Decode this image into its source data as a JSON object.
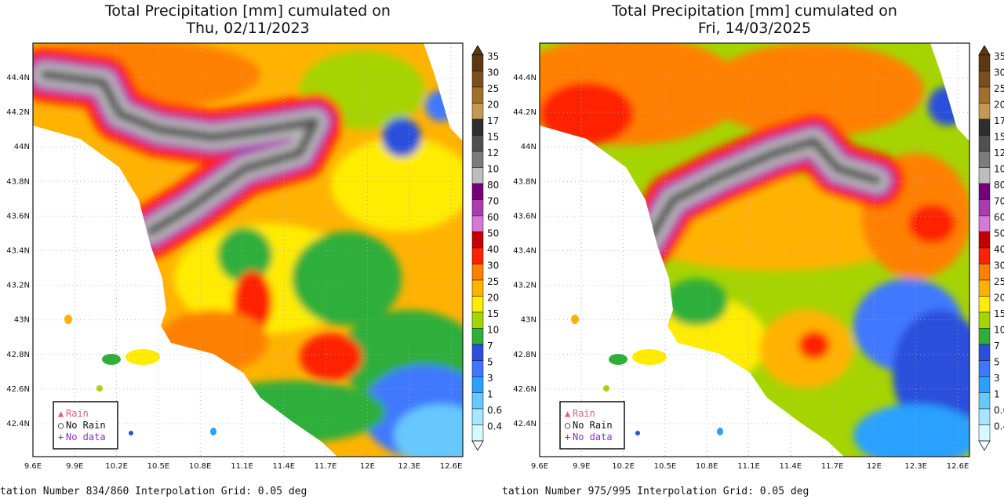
{
  "maps": [
    {
      "title": "Total Precipitation [mm] cumulated on",
      "date": "Thu, 02/11/2023",
      "footer": "tation Number 834/860 Interpolation Grid: 0.05 deg"
    },
    {
      "title": "Total Precipitation [mm] cumulated on",
      "date": "Fri, 14/03/2025",
      "footer": "tation Number 975/995 Interpolation Grid: 0.05 deg"
    }
  ],
  "lat_ticks": [
    "44.4N",
    "44.2N",
    "44N",
    "43.8N",
    "43.6N",
    "43.4N",
    "43.2N",
    "43N",
    "42.8N",
    "42.6N",
    "42.4N"
  ],
  "lon_ticks": [
    "9.6E",
    "9.9E",
    "10.2E",
    "10.5E",
    "10.8E",
    "11.1E",
    "11.4E",
    "11.7E",
    "12E",
    "12.3E",
    "12.6E"
  ],
  "colorbar": [
    "35",
    "30",
    "25",
    "20",
    "17",
    "15",
    "12",
    "10",
    "80",
    "70",
    "60",
    "50",
    "40",
    "30",
    "25",
    "20",
    "15",
    "10",
    "7",
    "5",
    "3",
    "1",
    "0.6",
    "0.4"
  ],
  "legend": [
    "Rain",
    "No Rain",
    "No data"
  ]
}
